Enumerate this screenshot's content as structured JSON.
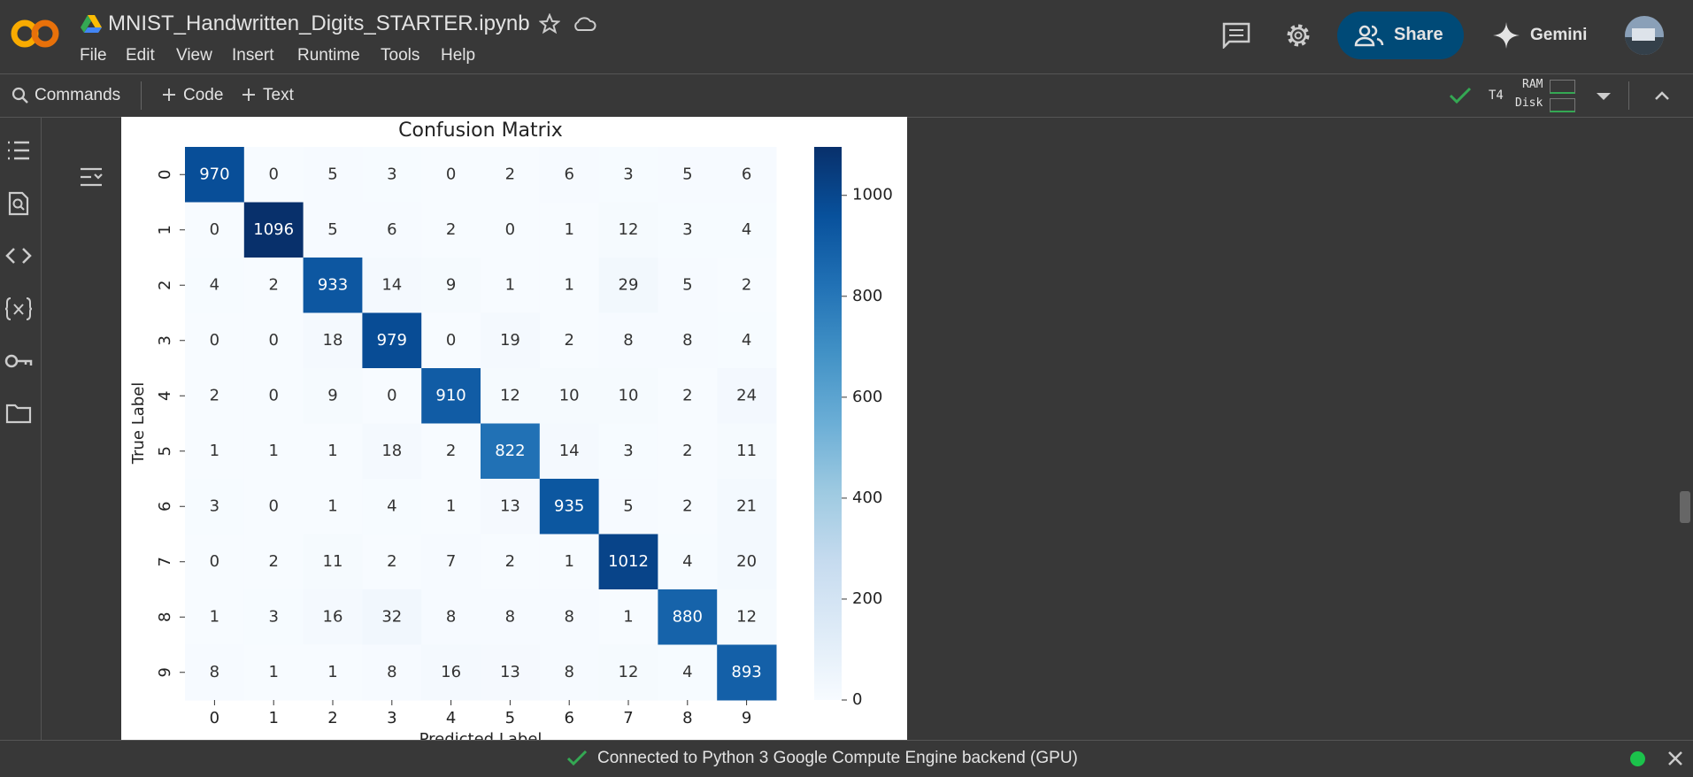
{
  "app": {
    "notebook_title": "MNIST_Handwritten_Digits_STARTER.ipynb",
    "menu": [
      "File",
      "Edit",
      "View",
      "Insert",
      "Runtime",
      "Tools",
      "Help"
    ],
    "share": "Share",
    "gemini": "Gemini",
    "toolbar": {
      "commands": "Commands",
      "code": "Code",
      "text": "Text",
      "runtime_type": "T4",
      "ram": "RAM",
      "disk": "Disk"
    },
    "status": "Connected to Python 3 Google Compute Engine backend (GPU)"
  },
  "chart_data": {
    "type": "heatmap",
    "title": "Confusion Matrix",
    "x_label": "Predicted Label",
    "y_label": "True Label",
    "x_categories": [
      "0",
      "1",
      "2",
      "3",
      "4",
      "5",
      "6",
      "7",
      "8",
      "9"
    ],
    "y_categories": [
      "0",
      "1",
      "2",
      "3",
      "4",
      "5",
      "6",
      "7",
      "8",
      "9"
    ],
    "values": [
      [
        970,
        0,
        5,
        3,
        0,
        2,
        6,
        3,
        5,
        6
      ],
      [
        0,
        1096,
        5,
        6,
        2,
        0,
        1,
        12,
        3,
        4
      ],
      [
        4,
        2,
        933,
        14,
        9,
        1,
        1,
        29,
        5,
        2
      ],
      [
        0,
        0,
        18,
        979,
        0,
        19,
        2,
        8,
        8,
        4
      ],
      [
        2,
        0,
        9,
        0,
        910,
        12,
        10,
        10,
        2,
        24
      ],
      [
        1,
        1,
        1,
        18,
        2,
        822,
        14,
        3,
        2,
        11
      ],
      [
        3,
        0,
        1,
        4,
        1,
        13,
        935,
        5,
        2,
        21
      ],
      [
        0,
        2,
        11,
        2,
        7,
        2,
        1,
        1012,
        4,
        20
      ],
      [
        1,
        3,
        16,
        32,
        8,
        8,
        8,
        1,
        880,
        12
      ],
      [
        8,
        1,
        1,
        8,
        16,
        13,
        8,
        12,
        4,
        893
      ]
    ],
    "colormap": "Blues",
    "clim": [
      0,
      1096
    ],
    "colorbar_ticks": [
      0,
      200,
      400,
      600,
      800,
      1000
    ]
  }
}
